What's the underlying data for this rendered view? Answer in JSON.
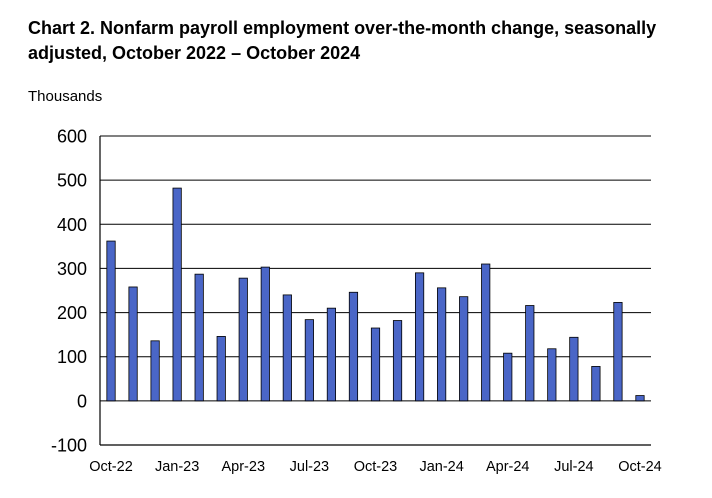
{
  "chart_data": {
    "type": "bar",
    "title": "Chart 2. Nonfarm payroll employment over-the-month change, seasonally adjusted, October 2022 – October 2024",
    "ylabel": "Thousands",
    "xlabel": "",
    "ylim": [
      -100,
      600
    ],
    "yticks": [
      -100,
      0,
      100,
      200,
      300,
      400,
      500,
      600
    ],
    "grid": true,
    "bar_color": "#4a66c7",
    "categories": [
      "Oct-22",
      "Nov-22",
      "Dec-22",
      "Jan-23",
      "Feb-23",
      "Mar-23",
      "Apr-23",
      "May-23",
      "Jun-23",
      "Jul-23",
      "Aug-23",
      "Sep-23",
      "Oct-23",
      "Nov-23",
      "Dec-23",
      "Jan-24",
      "Feb-24",
      "Mar-24",
      "Apr-24",
      "May-24",
      "Jun-24",
      "Jul-24",
      "Aug-24",
      "Sep-24",
      "Oct-24"
    ],
    "xtick_labels": [
      "Oct-22",
      "Jan-23",
      "Apr-23",
      "Jul-23",
      "Oct-23",
      "Jan-24",
      "Apr-24",
      "Jul-24",
      "Oct-24"
    ],
    "values": [
      362,
      258,
      136,
      482,
      287,
      146,
      278,
      303,
      240,
      184,
      210,
      246,
      165,
      182,
      290,
      256,
      236,
      310,
      108,
      216,
      118,
      144,
      78,
      223,
      12
    ]
  }
}
